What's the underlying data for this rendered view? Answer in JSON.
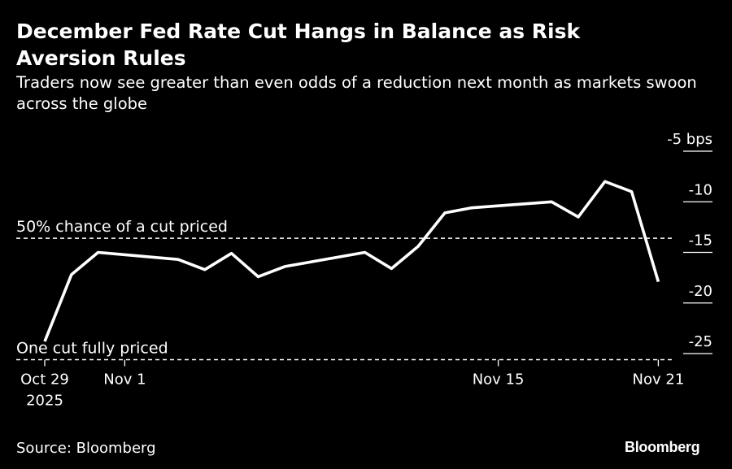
{
  "title": "December Fed Rate Cut Hangs in Balance as Risk Aversion Rules",
  "subtitle": "Traders now see greater than even odds of a reduction next month as markets swoon across the globe",
  "source": "Source: Bloomberg",
  "brand": "Bloomberg",
  "colors": {
    "background": "#000000",
    "line": "#ffffff",
    "text": "#ffffff"
  },
  "chart_data": {
    "type": "line",
    "x_tick_labels": [
      {
        "date": "2025-10-29",
        "lines": [
          "Oct 29",
          "2025"
        ]
      },
      {
        "date": "2025-11-01",
        "lines": [
          "Nov 1"
        ]
      },
      {
        "date": "2025-11-15",
        "lines": [
          "Nov 15"
        ]
      },
      {
        "date": "2025-11-21",
        "lines": [
          "Nov 21"
        ]
      }
    ],
    "y_unit": "bps",
    "y_ticks": [
      -5,
      -10,
      -15,
      -20,
      -25
    ],
    "y_tick_labels": [
      "-5 bps",
      "-10",
      "-15",
      "-20",
      "-25"
    ],
    "ylim": [
      -26,
      -5
    ],
    "grid": false,
    "series": [
      {
        "x": [
          "2025-10-29",
          "2025-10-30",
          "2025-10-31",
          "2025-11-03",
          "2025-11-04",
          "2025-11-05",
          "2025-11-06",
          "2025-11-07",
          "2025-11-10",
          "2025-11-11",
          "2025-11-12",
          "2025-11-13",
          "2025-11-14",
          "2025-11-17",
          "2025-11-18",
          "2025-11-19",
          "2025-11-20",
          "2025-11-21"
        ],
        "y": [
          -23.8,
          -17.2,
          -15.0,
          -15.7,
          -16.7,
          -15.1,
          -17.4,
          -16.4,
          -15.0,
          -16.6,
          -14.4,
          -11.1,
          -10.6,
          -10.0,
          -11.5,
          -8.0,
          -9.0,
          -17.9
        ]
      }
    ],
    "reference_lines": [
      {
        "label": "50% chance of a cut priced",
        "y": -13.6
      },
      {
        "label": "One cut fully priced",
        "y": -25.6
      }
    ]
  }
}
